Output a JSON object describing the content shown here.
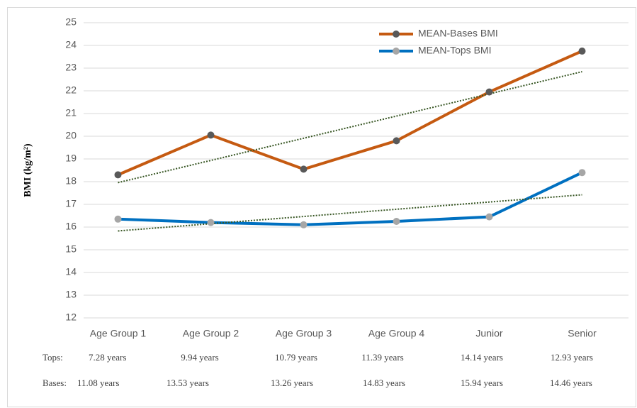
{
  "chart_data": {
    "type": "line",
    "y_label": "BMI (kg/m²)",
    "categories": [
      "Age Group 1",
      "Age Group 2",
      "Age Group 3",
      "Age Group 4",
      "Junior",
      "Senior"
    ],
    "series": [
      {
        "name": "MEAN-Bases BMI",
        "color": "#c55a11",
        "marker_color": "#595959",
        "trendline": true,
        "values": [
          18.3,
          20.05,
          18.55,
          19.8,
          21.95,
          23.75
        ]
      },
      {
        "name": "MEAN-Tops BMI",
        "color": "#0070c0",
        "marker_color": "#a6a6a6",
        "trendline": true,
        "values": [
          16.35,
          16.2,
          16.1,
          16.25,
          16.45,
          18.4
        ]
      }
    ],
    "trendline_color": "#375623",
    "ylim": [
      12,
      25
    ],
    "yticks": [
      12,
      13,
      14,
      15,
      16,
      17,
      18,
      19,
      20,
      21,
      22,
      23,
      24,
      25
    ],
    "grid": true,
    "legend": "top-right",
    "notes": {
      "tops_label": "Tops:",
      "tops": [
        "7.28 years",
        "9.94 years",
        "10.79 years",
        "11.39 years",
        "14.14 years",
        "12.93 years"
      ],
      "bases_label": "Bases:",
      "bases": [
        "11.08 years",
        "13.53 years",
        "13.26 years",
        "14.83 years",
        "15.94 years",
        "14.46 years"
      ]
    }
  }
}
